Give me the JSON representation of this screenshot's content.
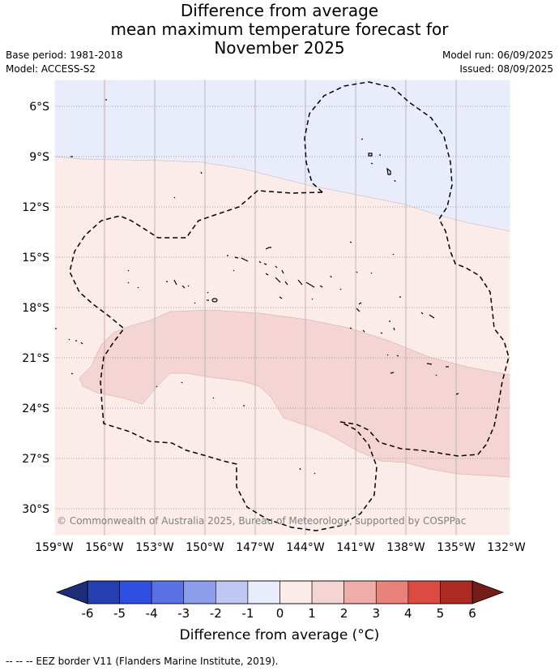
{
  "title": {
    "line1": "Difference from average",
    "line2": "mean maximum temperature forecast for",
    "line3": "November 2025"
  },
  "meta": {
    "base_period": "Base period: 1981-2018",
    "model": "Model: ACCESS-S2",
    "model_run": "Model run: 06/09/2025",
    "issued": "Issued: 08/09/2025"
  },
  "map": {
    "lat_ticks": [
      "6°S",
      "9°S",
      "12°S",
      "15°S",
      "18°S",
      "21°S",
      "24°S",
      "27°S",
      "30°S"
    ],
    "lon_ticks": [
      "159°W",
      "156°W",
      "153°W",
      "150°W",
      "147°W",
      "144°W",
      "141°W",
      "138°W",
      "135°W",
      "132°W"
    ],
    "copyright": "© Commonwealth of Australia 2025, Bureau of Meteorology, supported by COSPPac",
    "colors": {
      "neg_0_1": "#e8ecfb",
      "pos_0_1": "#fbecea",
      "pos_1_2": "#f5d5d3",
      "grid": "#888888"
    }
  },
  "colorbar": {
    "ticks": [
      "-6",
      "-5",
      "-4",
      "-3",
      "-2",
      "-1",
      "0",
      "1",
      "2",
      "3",
      "4",
      "5",
      "6"
    ],
    "colors": [
      "#2440b0",
      "#2f4fe0",
      "#5a72e4",
      "#8c9eeb",
      "#bfc8f4",
      "#e8ecfb",
      "#fbecea",
      "#f5d5d3",
      "#f0aca8",
      "#e8827b",
      "#dc4a42",
      "#ac2a22"
    ],
    "under_color": "#1c2e78",
    "over_color": "#741c18",
    "label": "Difference from average (°C)"
  },
  "footnote": "-- -- -- EEZ border V11 (Flanders Marine Institute, 2019)."
}
